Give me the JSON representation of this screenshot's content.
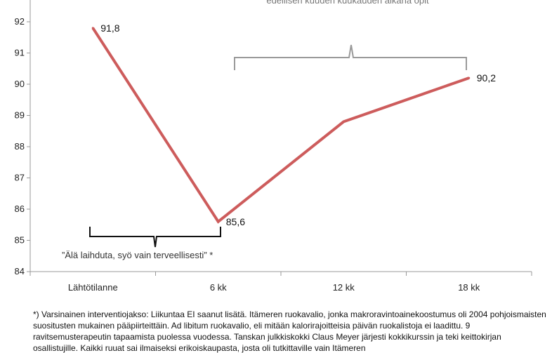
{
  "chart_data": {
    "type": "line",
    "title": "",
    "xlabel": "",
    "ylabel": "",
    "categories": [
      "Lähtötilanne",
      "6 kk",
      "12 kk",
      "18 kk"
    ],
    "series": [
      {
        "values": [
          91.8,
          85.6,
          88.8,
          90.2
        ],
        "color": "#cd5c5c"
      }
    ],
    "data_labels": [
      "91,8",
      "85,6",
      "",
      "90,2"
    ],
    "ylim": [
      84,
      92
    ],
    "yticks": [
      "84",
      "85",
      "86",
      "87",
      "88",
      "89",
      "90",
      "91",
      "92"
    ],
    "grid": false,
    "annotations": {
      "top_bracket_text": "edellisen kuuden kuukauden aikana opit",
      "bottom_bracket_text": "”Älä laihduta, syö vain terveellisesti” *"
    }
  },
  "footnote": "*) Varsinainen interventiojakso: Liikuntaa EI saanut lisätä. Itämeren ruokavalio, jonka makroravintoainekoostumus oli 2004 pohjoismaisten suositusten mukainen pääpiirteittäin. Ad libitum ruokavalio, eli mitään kalorirajoitteisia päivän ruokalistoja ei laadittu. 9 ravitsemusterapeutin tapaamista puolessa vuodessa. Tanskan julkkiskokki Claus Meyer järjesti kokkikurssin ja teki keittokirjan osallistujille. Kaikki ruuat sai ilmaiseksi erikoiskaupasta, josta oli tutkittaville vain Itämeren"
}
